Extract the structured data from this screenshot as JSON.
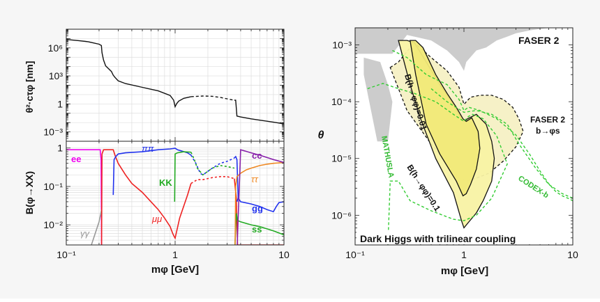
{
  "chart_data": [
    {
      "type": "line",
      "panel": "lifetime",
      "ylabel": "θ²·cτφ [nm]",
      "xscale": "log",
      "yscale": "log",
      "xlim": [
        0.1,
        10
      ],
      "ylim": [
        0.0001,
        100000000
      ],
      "yticks": [
        "10⁶",
        "10³",
        "1",
        "10⁻³"
      ],
      "series": [
        {
          "style": "solid",
          "x": [
            0.1,
            0.13,
            0.15,
            0.16,
            0.2,
            0.21,
            0.213,
            0.22,
            0.23,
            0.26,
            0.27,
            0.28,
            0.3,
            0.35,
            0.5,
            0.7,
            0.9,
            0.97,
            1.0,
            1.03,
            1.08,
            1.2,
            1.4
          ],
          "y": [
            8000000,
            6000000,
            5000000,
            4500000,
            2500000,
            1800000,
            300000,
            50000,
            12000,
            3000,
            1200,
            700,
            300,
            150,
            60,
            25,
            8,
            2.5,
            0.5,
            1.0,
            2.0,
            4.0,
            6.0
          ]
        },
        {
          "style": "dashed",
          "x": [
            1.4,
            1.8,
            2.2,
            2.6,
            3.0,
            3.5
          ],
          "y": [
            6.0,
            7.0,
            6.5,
            5.0,
            3.5,
            2.5
          ]
        },
        {
          "style": "solid",
          "x": [
            3.5,
            3.6,
            3.7,
            4.0,
            5.0,
            6.0,
            7.0,
            8.0,
            9.0,
            10.0
          ],
          "y": [
            2.5,
            2.5,
            0.05,
            0.04,
            0.025,
            0.018,
            0.014,
            0.011,
            0.009,
            0.007
          ]
        }
      ]
    },
    {
      "type": "line",
      "panel": "branching",
      "xlabel": "mφ [GeV]",
      "ylabel": "B(φ→XX)",
      "xscale": "log",
      "yscale": "log",
      "xlim": [
        0.1,
        10
      ],
      "ylim": [
        0.003,
        1.5
      ],
      "xticks": [
        "10⁻¹",
        "1",
        "10"
      ],
      "yticks": [
        "1",
        "10⁻¹",
        "10⁻²"
      ],
      "series": [
        {
          "name": "ee",
          "color": "#ee00ee",
          "style": "solid",
          "x": [
            0.1,
            0.15,
            0.19,
            0.205,
            0.209,
            0.211
          ],
          "y": [
            0.9,
            0.9,
            0.9,
            0.9,
            0.5,
            0.003
          ]
        },
        {
          "name": "γγ",
          "color": "#999999",
          "style": "solid",
          "x": [
            0.17,
            0.2,
            0.211
          ],
          "y": [
            0.003,
            0.012,
            0.025
          ]
        },
        {
          "name": "μμ",
          "color": "#ee2222",
          "style": "solid",
          "x": [
            0.211,
            0.213,
            0.22,
            0.27,
            0.28,
            0.3,
            0.35,
            0.4,
            0.5,
            0.6,
            0.7,
            0.8,
            0.9,
            0.95,
            0.98,
            1.0,
            1.1,
            1.3,
            1.4
          ],
          "y": [
            0.003,
            0.7,
            0.9,
            0.9,
            0.65,
            0.4,
            0.2,
            0.12,
            0.07,
            0.04,
            0.025,
            0.015,
            0.009,
            0.006,
            0.005,
            0.0045,
            0.015,
            0.06,
            0.12
          ]
        },
        {
          "name": "μμ",
          "color": "#ee2222",
          "style": "dashed",
          "x": [
            1.4,
            1.6,
            1.8,
            2.2,
            2.6,
            3.0,
            3.5
          ],
          "y": [
            0.12,
            0.15,
            0.15,
            0.17,
            0.18,
            0.18,
            0.16
          ]
        },
        {
          "name": "μμ",
          "color": "#ee2222",
          "style": "solid",
          "x": [
            3.5,
            3.65,
            3.75,
            4.0,
            6.0,
            10.0
          ],
          "y": [
            0.16,
            0.05,
            0.003,
            0.003,
            0.003,
            0.003
          ]
        },
        {
          "name": "ππ",
          "color": "#2233ee",
          "style": "solid",
          "x": [
            0.27,
            0.275,
            0.285,
            0.3,
            0.35,
            0.5,
            0.7,
            0.9,
            0.95,
            0.98,
            1.0,
            1.05,
            1.3,
            1.4
          ],
          "y": [
            0.06,
            0.5,
            0.6,
            0.7,
            0.75,
            0.8,
            0.9,
            0.95,
            0.97,
            0.98,
            0.99,
            0.9,
            0.75,
            0.65
          ]
        },
        {
          "name": "ππ",
          "color": "#2233ee",
          "style": "dashed",
          "x": [
            1.4,
            1.55,
            1.7,
            1.8,
            2.2,
            2.6,
            3.0,
            3.5
          ],
          "y": [
            0.65,
            0.4,
            0.22,
            0.2,
            0.3,
            0.4,
            0.45,
            0.55
          ]
        },
        {
          "name": "ππ",
          "color": "#2233ee",
          "style": "solid",
          "x": [
            3.5,
            3.6,
            3.7,
            3.8
          ],
          "y": [
            0.55,
            0.6,
            0.5,
            0.05
          ]
        },
        {
          "name": "KK",
          "color": "#22aa22",
          "style": "solid",
          "x": [
            0.99,
            1.0,
            1.05,
            1.2,
            1.4
          ],
          "y": [
            0.04,
            0.7,
            0.75,
            0.8,
            0.78
          ]
        },
        {
          "name": "KK",
          "color": "#22aa22",
          "style": "dashed",
          "x": [
            1.4,
            1.5,
            1.6,
            1.8,
            2.2,
            2.6,
            3.0,
            3.5
          ],
          "y": [
            0.78,
            0.5,
            0.3,
            0.2,
            0.3,
            0.35,
            0.33,
            0.3
          ]
        },
        {
          "name": "ss",
          "color": "#22aa22",
          "style": "solid",
          "x": [
            3.55,
            3.65,
            3.75,
            4.0,
            5.0,
            6.0,
            8.0,
            10.0
          ],
          "y": [
            0.003,
            0.02,
            0.013,
            0.012,
            0.01,
            0.009,
            0.007,
            0.0055
          ]
        },
        {
          "name": "ττ",
          "color": "#ee8822",
          "style": "solid",
          "x": [
            3.56,
            3.6,
            3.7,
            4.0,
            4.5,
            5.0,
            6.0,
            7.0,
            8.0,
            10.0
          ],
          "y": [
            0.003,
            0.1,
            0.18,
            0.22,
            0.27,
            0.3,
            0.35,
            0.38,
            0.4,
            0.42
          ]
        },
        {
          "name": "gg",
          "color": "#2233ee",
          "style": "solid",
          "x": [
            3.7,
            3.8,
            4.0,
            5.0,
            6.0,
            7.0,
            8.0,
            8.5,
            9.0,
            10.0
          ],
          "y": [
            0.04,
            0.05,
            0.04,
            0.035,
            0.03,
            0.025,
            0.022,
            0.03,
            0.038,
            0.04
          ]
        },
        {
          "name": "cc",
          "color": "#8822aa",
          "style": "solid",
          "x": [
            3.72,
            4.0,
            5.0,
            6.0,
            8.0,
            10.0
          ],
          "y": [
            0.003,
            0.9,
            0.75,
            0.65,
            0.5,
            0.42
          ]
        }
      ]
    },
    {
      "type": "area",
      "panel": "sensitivity",
      "xlabel": "mφ [GeV]",
      "ylabel": "θ",
      "xscale": "log",
      "yscale": "log",
      "xlim": [
        0.1,
        10
      ],
      "ylim": [
        3e-07,
        0.002
      ],
      "xticks": [
        "10⁻¹",
        "1",
        "10"
      ],
      "yticks": [
        "10⁻³",
        "10⁻⁴",
        "10⁻⁵",
        "10⁻⁶"
      ],
      "title": "FASER 2",
      "annotations": [
        "FASER 2",
        "b→φs",
        "MATHUSLA",
        "CODEX-b",
        "B(h→φφ)=0.01",
        "B(h→φφ)=0.1",
        "Dark Higgs with trilinear coupling"
      ],
      "regions": [
        {
          "name": "excluded",
          "color": "#cccccc",
          "x": [
            0.1,
            0.22,
            0.3,
            0.5,
            0.7,
            0.9,
            1.0,
            1.05,
            1.3,
            1.6,
            2.0,
            2.5,
            3.0,
            4.0,
            6.0,
            10.0,
            10.0,
            0.1
          ],
          "y": [
            0.0007,
            0.0007,
            0.0015,
            0.0012,
            0.0008,
            0.0005,
            0.00035,
            0.0005,
            0.0008,
            0.0009,
            0.0012,
            0.0014,
            0.0016,
            0.0018,
            0.002,
            0.002,
            0.002,
            0.002
          ]
        },
        {
          "name": "excluded",
          "color": "#cccccc",
          "x": [
            0.12,
            0.17,
            0.2,
            0.22,
            0.2,
            0.16,
            0.12
          ],
          "y": [
            0.0006,
            0.0005,
            0.0002,
            0.0001,
            2e-05,
            2e-05,
            0.0003
          ]
        },
        {
          "name": "FASER 2 b→φs",
          "color": "#f6f0c4",
          "stroke": "#111111",
          "style": "dashed",
          "x": [
            0.21,
            0.25,
            0.35,
            0.5,
            0.7,
            0.9,
            1.0,
            1.15,
            1.4,
            1.8,
            2.3,
            2.8,
            3.2,
            3.5,
            3.0,
            2.3,
            1.7,
            1.3,
            1.05,
            0.9,
            0.7,
            0.5,
            0.3,
            0.21
          ],
          "y": [
            0.0004,
            0.0005,
            0.0011,
            0.0006,
            0.00035,
            0.00018,
            9e-05,
            0.00012,
            0.00013,
            0.00013,
            0.00011,
            8e-05,
            5e-05,
            3e-05,
            1.6e-05,
            9e-06,
            5.5e-06,
            4.5e-06,
            4e-06,
            4.5e-06,
            8.5e-06,
            1.8e-05,
            7e-05,
            0.0004
          ]
        },
        {
          "name": "B(h→φφ)=0.1",
          "color": "#f8f2a4",
          "stroke": "#111111",
          "style": "solid",
          "x": [
            0.25,
            0.3,
            0.35,
            0.45,
            0.6,
            0.8,
            0.95,
            1.0,
            1.08,
            1.3,
            1.6,
            1.8,
            1.9,
            1.8,
            1.5,
            1.3,
            1.1,
            1.0,
            0.95,
            0.8,
            0.55,
            0.4,
            0.32,
            0.25
          ],
          "y": [
            0.0012,
            0.0012,
            0.0011,
            0.0005,
            0.0002,
            9e-05,
            5e-05,
            4.5e-05,
            5e-05,
            6e-05,
            4e-05,
            2e-05,
            1e-05,
            4e-06,
            1.8e-06,
            1.1e-06,
            7.5e-07,
            6e-07,
            8e-07,
            2.5e-06,
            1e-05,
            5e-05,
            0.0002,
            0.0012
          ]
        },
        {
          "name": "B(h→φφ)=0.01",
          "color": "#f1e978",
          "stroke": "#111111",
          "style": "solid",
          "x": [
            0.32,
            0.36,
            0.42,
            0.55,
            0.7,
            0.85,
            0.98,
            1.05,
            1.18,
            1.35,
            1.4,
            1.3,
            1.15,
            1.05,
            0.98,
            0.85,
            0.6,
            0.45,
            0.36,
            0.32
          ],
          "y": [
            0.0012,
            0.0012,
            0.0009,
            0.0003,
            0.00014,
            8e-05,
            5e-05,
            4.5e-05,
            5.2e-05,
            3e-05,
            1.5e-05,
            6.5e-06,
            3.5e-06,
            2.4e-06,
            2.2e-06,
            4e-06,
            1.2e-05,
            4e-05,
            0.0003,
            0.0012
          ]
        }
      ],
      "series": [
        {
          "name": "MATHUSLA",
          "color": "#33cc33",
          "style": "dashed",
          "x": [
            0.13,
            0.18,
            0.25,
            0.35,
            0.55,
            0.8,
            1.0,
            1.1,
            1.2,
            1.5,
            2.0,
            2.5,
            1.8,
            1.3,
            1.0,
            0.8,
            0.5,
            0.32,
            0.25,
            0.21,
            0.2
          ],
          "y": [
            0.00017,
            0.00021,
            0.00017,
            0.00014,
            0.0001,
            6e-05,
            4.5e-05,
            5.5e-05,
            6e-05,
            5e-05,
            2.5e-05,
            8e-06,
            2e-06,
            1e-06,
            8e-07,
            8.5e-07,
            1.2e-06,
            1.8e-06,
            4e-06,
            4e-06,
            3e-07
          ]
        },
        {
          "name": "CODEX-b",
          "color": "#33cc33",
          "style": "dashed",
          "x": [
            0.22,
            0.3,
            0.45,
            0.7,
            0.9,
            1.0,
            1.1,
            1.4,
            2.0,
            3.0,
            4.0,
            5.0,
            6.0,
            7.0,
            8.0,
            9.0,
            10.0
          ],
          "y": [
            0.0008,
            0.0006,
            0.0003,
            0.0002,
            0.00011,
            7e-05,
            8e-05,
            7e-05,
            5e-05,
            2.6e-05,
            1.2e-05,
            6e-06,
            3.6e-06,
            2.6e-06,
            2.2e-06,
            2e-06,
            1.8e-06
          ]
        },
        {
          "name": "CODEX-b",
          "color": "#33cc33",
          "style": "dashed",
          "x": [
            0.5,
            0.7,
            1.0,
            1.3,
            1.8,
            2.5,
            3.2,
            4.5,
            6.0,
            8.0,
            10.0
          ],
          "y": [
            0.00017,
            0.0001,
            6.5e-05,
            7e-05,
            6e-05,
            4e-05,
            1.8e-05,
            7e-06,
            3.5e-06,
            2.4e-06,
            2e-06
          ]
        }
      ]
    }
  ],
  "labels": {
    "ee": "ee",
    "gg_photon": "γγ",
    "mumu": "μμ",
    "pipi": "ππ",
    "kk": "KK",
    "cc": "cc",
    "tautau": "ττ",
    "gg": "gg",
    "ss": "ss",
    "faser_title": "FASER 2",
    "faser_sub1": "FASER 2",
    "faser_sub2": "b→φs",
    "mathusla": "MATHUSLA",
    "codex": "CODEX-b",
    "b001": "B(h→φφ)=0.01",
    "b01": "B(h→φφ)=0.1",
    "caption": "Dark Higgs with trilinear coupling"
  }
}
